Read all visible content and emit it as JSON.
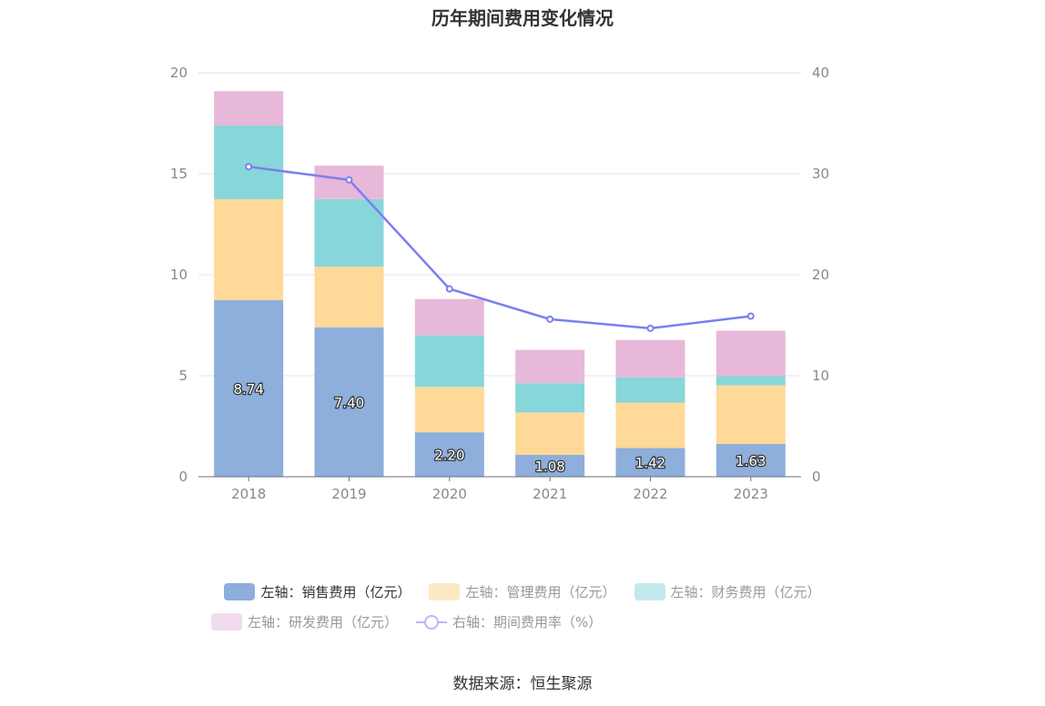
{
  "chart_data": {
    "type": "bar",
    "title": "历年期间费用变化情况",
    "categories": [
      "2018",
      "2019",
      "2020",
      "2021",
      "2022",
      "2023"
    ],
    "series": [
      {
        "name": "左轴：销售费用（亿元）",
        "axis": "left",
        "type": "bar",
        "color": "#8eaedb",
        "values": [
          8.74,
          7.4,
          2.2,
          1.08,
          1.42,
          1.63
        ]
      },
      {
        "name": "左轴：管理费用（亿元）",
        "axis": "left",
        "type": "bar",
        "color": "#fed998",
        "values": [
          5.0,
          3.0,
          2.25,
          2.1,
          2.25,
          2.9
        ]
      },
      {
        "name": "左轴：财务费用（亿元）",
        "axis": "left",
        "type": "bar",
        "color": "#87d6da",
        "values": [
          3.65,
          3.35,
          2.55,
          1.45,
          1.25,
          0.45
        ]
      },
      {
        "name": "左轴：研发费用（亿元）",
        "axis": "left",
        "type": "bar",
        "color": "#e7b8d9",
        "values": [
          1.7,
          1.65,
          1.8,
          1.65,
          1.85,
          2.25
        ]
      },
      {
        "name": "右轴：期间费用率（%）",
        "axis": "right",
        "type": "line",
        "color": "#7b7ef0",
        "values": [
          30.7,
          29.4,
          18.6,
          15.6,
          14.7,
          15.9
        ]
      }
    ],
    "bar_labels": [
      "8.74",
      "7.40",
      "2.20",
      "1.08",
      "1.42",
      "1.63"
    ],
    "y_left": {
      "ylim": [
        0,
        20
      ],
      "ticks": [
        "0",
        "5",
        "10",
        "15",
        "20"
      ]
    },
    "y_right": {
      "ylim": [
        0,
        40
      ],
      "ticks": [
        "0",
        "10",
        "20",
        "30",
        "40"
      ]
    },
    "stacked": true,
    "grid": true,
    "legend_position": "bottom"
  },
  "legend": [
    {
      "label": "左轴：销售费用（亿元）",
      "color": "#8eaedb",
      "kind": "bar",
      "active": true
    },
    {
      "label": "左轴：管理费用（亿元）",
      "color": "#fde8c6",
      "kind": "bar",
      "active": false
    },
    {
      "label": "左轴：财务费用（亿元）",
      "color": "#c3e8eb",
      "kind": "bar",
      "active": false
    },
    {
      "label": "左轴：研发费用（亿元）",
      "color": "#f1dbec",
      "kind": "bar",
      "active": false
    },
    {
      "label": "右轴：期间费用率（%）",
      "color": "#b9b8f6",
      "kind": "line",
      "active": false
    }
  ],
  "source": "数据来源：恒生聚源"
}
